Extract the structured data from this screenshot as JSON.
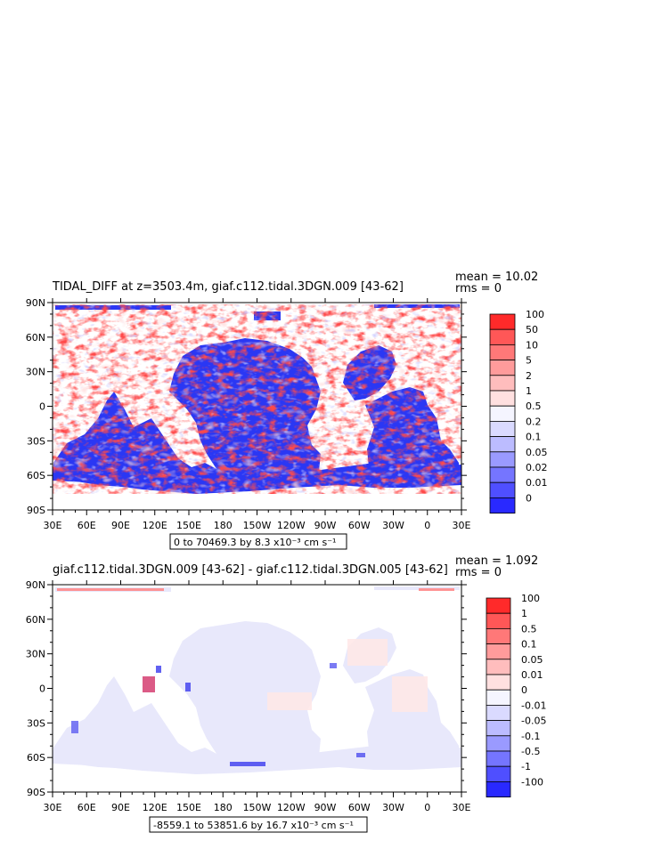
{
  "chart_data": [
    {
      "type": "heatmap",
      "title": "TIDAL_DIFF at z=3503.4m, giaf.c112.tidal.3DGN.009 [43-62]",
      "stats": {
        "mean": "mean = 10.02",
        "rms": "rms = 0"
      },
      "x_ticks": [
        "30E",
        "60E",
        "90E",
        "120E",
        "150E",
        "180",
        "150W",
        "120W",
        "90W",
        "60W",
        "30W",
        "0",
        "30E"
      ],
      "y_ticks": [
        "90N",
        "60N",
        "30N",
        "0",
        "30S",
        "60S",
        "90S"
      ],
      "xlim": [
        30,
        390
      ],
      "ylim": [
        -90,
        90
      ],
      "range_label": "0 to 70469.3 by 8.3 x10⁻³ cm s⁻¹",
      "colorbar": {
        "labels": [
          "100",
          "50",
          "10",
          "5",
          "2",
          "1",
          "0.5",
          "0.2",
          "0.1",
          "0.05",
          "0.02",
          "0.01",
          "0"
        ],
        "colors": [
          "#ff2a2a",
          "#ff5757",
          "#ff7878",
          "#ff9b9b",
          "#ffbdbd",
          "#ffe0e0",
          "#f5f5ff",
          "#dadaff",
          "#bcbcff",
          "#9a9aff",
          "#7575ff",
          "#4f4fff",
          "#2929ff"
        ]
      }
    },
    {
      "type": "heatmap",
      "title": "giaf.c112.tidal.3DGN.009 [43-62] - giaf.c112.tidal.3DGN.005 [43-62]",
      "stats": {
        "mean": "mean = 1.092",
        "rms": "rms = 0"
      },
      "x_ticks": [
        "30E",
        "60E",
        "90E",
        "120E",
        "150E",
        "180",
        "150W",
        "120W",
        "90W",
        "60W",
        "30W",
        "0",
        "30E"
      ],
      "y_ticks": [
        "90N",
        "60N",
        "30N",
        "0",
        "30S",
        "60S",
        "90S"
      ],
      "xlim": [
        30,
        390
      ],
      "ylim": [
        -90,
        90
      ],
      "range_label": "-8559.1 to 53851.6 by 16.7 x10⁻³ cm s⁻¹",
      "colorbar": {
        "labels": [
          "100",
          "1",
          "0.5",
          "0.1",
          "0.05",
          "0.01",
          "0",
          "-0.01",
          "-0.05",
          "-0.1",
          "-0.5",
          "-1",
          "-100"
        ],
        "colors": [
          "#ff2a2a",
          "#ff5757",
          "#ff7878",
          "#ff9b9b",
          "#ffbdbd",
          "#ffe0e0",
          "#f5f5ff",
          "#dadaff",
          "#bcbcff",
          "#9a9aff",
          "#7575ff",
          "#4f4fff",
          "#2929ff"
        ]
      }
    }
  ]
}
